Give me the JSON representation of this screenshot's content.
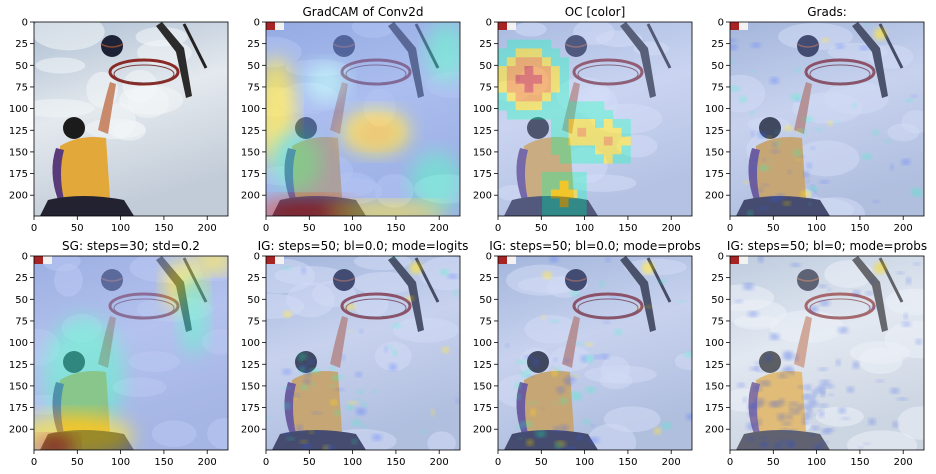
{
  "figure": {
    "panels": [
      {
        "title": "",
        "overlay": "none"
      },
      {
        "title": "GradCAM of Conv2d",
        "overlay": "gradcam"
      },
      {
        "title": "OC [color]",
        "overlay": "occlusion"
      },
      {
        "title": "Grads:",
        "overlay": "grads"
      },
      {
        "title": "SG: steps=30; std=0.2",
        "overlay": "smoothgrad"
      },
      {
        "title": "IG: steps=50; bl=0.0; mode=logits",
        "overlay": "ig"
      },
      {
        "title": "IG: steps=50; bl=0.0; mode=probs",
        "overlay": "ig"
      },
      {
        "title": "IG: steps=50; bl=0; mode=probs",
        "overlay": "ig_sparse"
      }
    ]
  },
  "chart_data": {
    "type": "heatmap",
    "layout": "2x4 grid of image panels",
    "colormap": "jet overlay on photo (basketball player dunking)",
    "xlim": [
      0,
      224
    ],
    "ylim": [
      224,
      0
    ],
    "xticks": [
      "0",
      "50",
      "100",
      "150",
      "200"
    ],
    "yticks": [
      "0",
      "25",
      "50",
      "75",
      "100",
      "125",
      "150",
      "175",
      "200"
    ],
    "tick_values_x": [
      0,
      50,
      100,
      150,
      200
    ],
    "tick_values_y": [
      0,
      25,
      50,
      75,
      100,
      125,
      150,
      175,
      200
    ],
    "grid": false,
    "colors": {
      "corner_marker_red": "#a82323",
      "corner_marker_white": "#f2f2f2",
      "ball": "#1d2236",
      "rim": "#8a2a26",
      "jersey": "#e2a83a",
      "skin": "#c98a6c",
      "sky": "#cfd8e2",
      "heat_low": "#2a44e8",
      "heat_mid": "#40e0d0",
      "heat_high": "#ffe020",
      "heat_max": "#d42020"
    }
  }
}
